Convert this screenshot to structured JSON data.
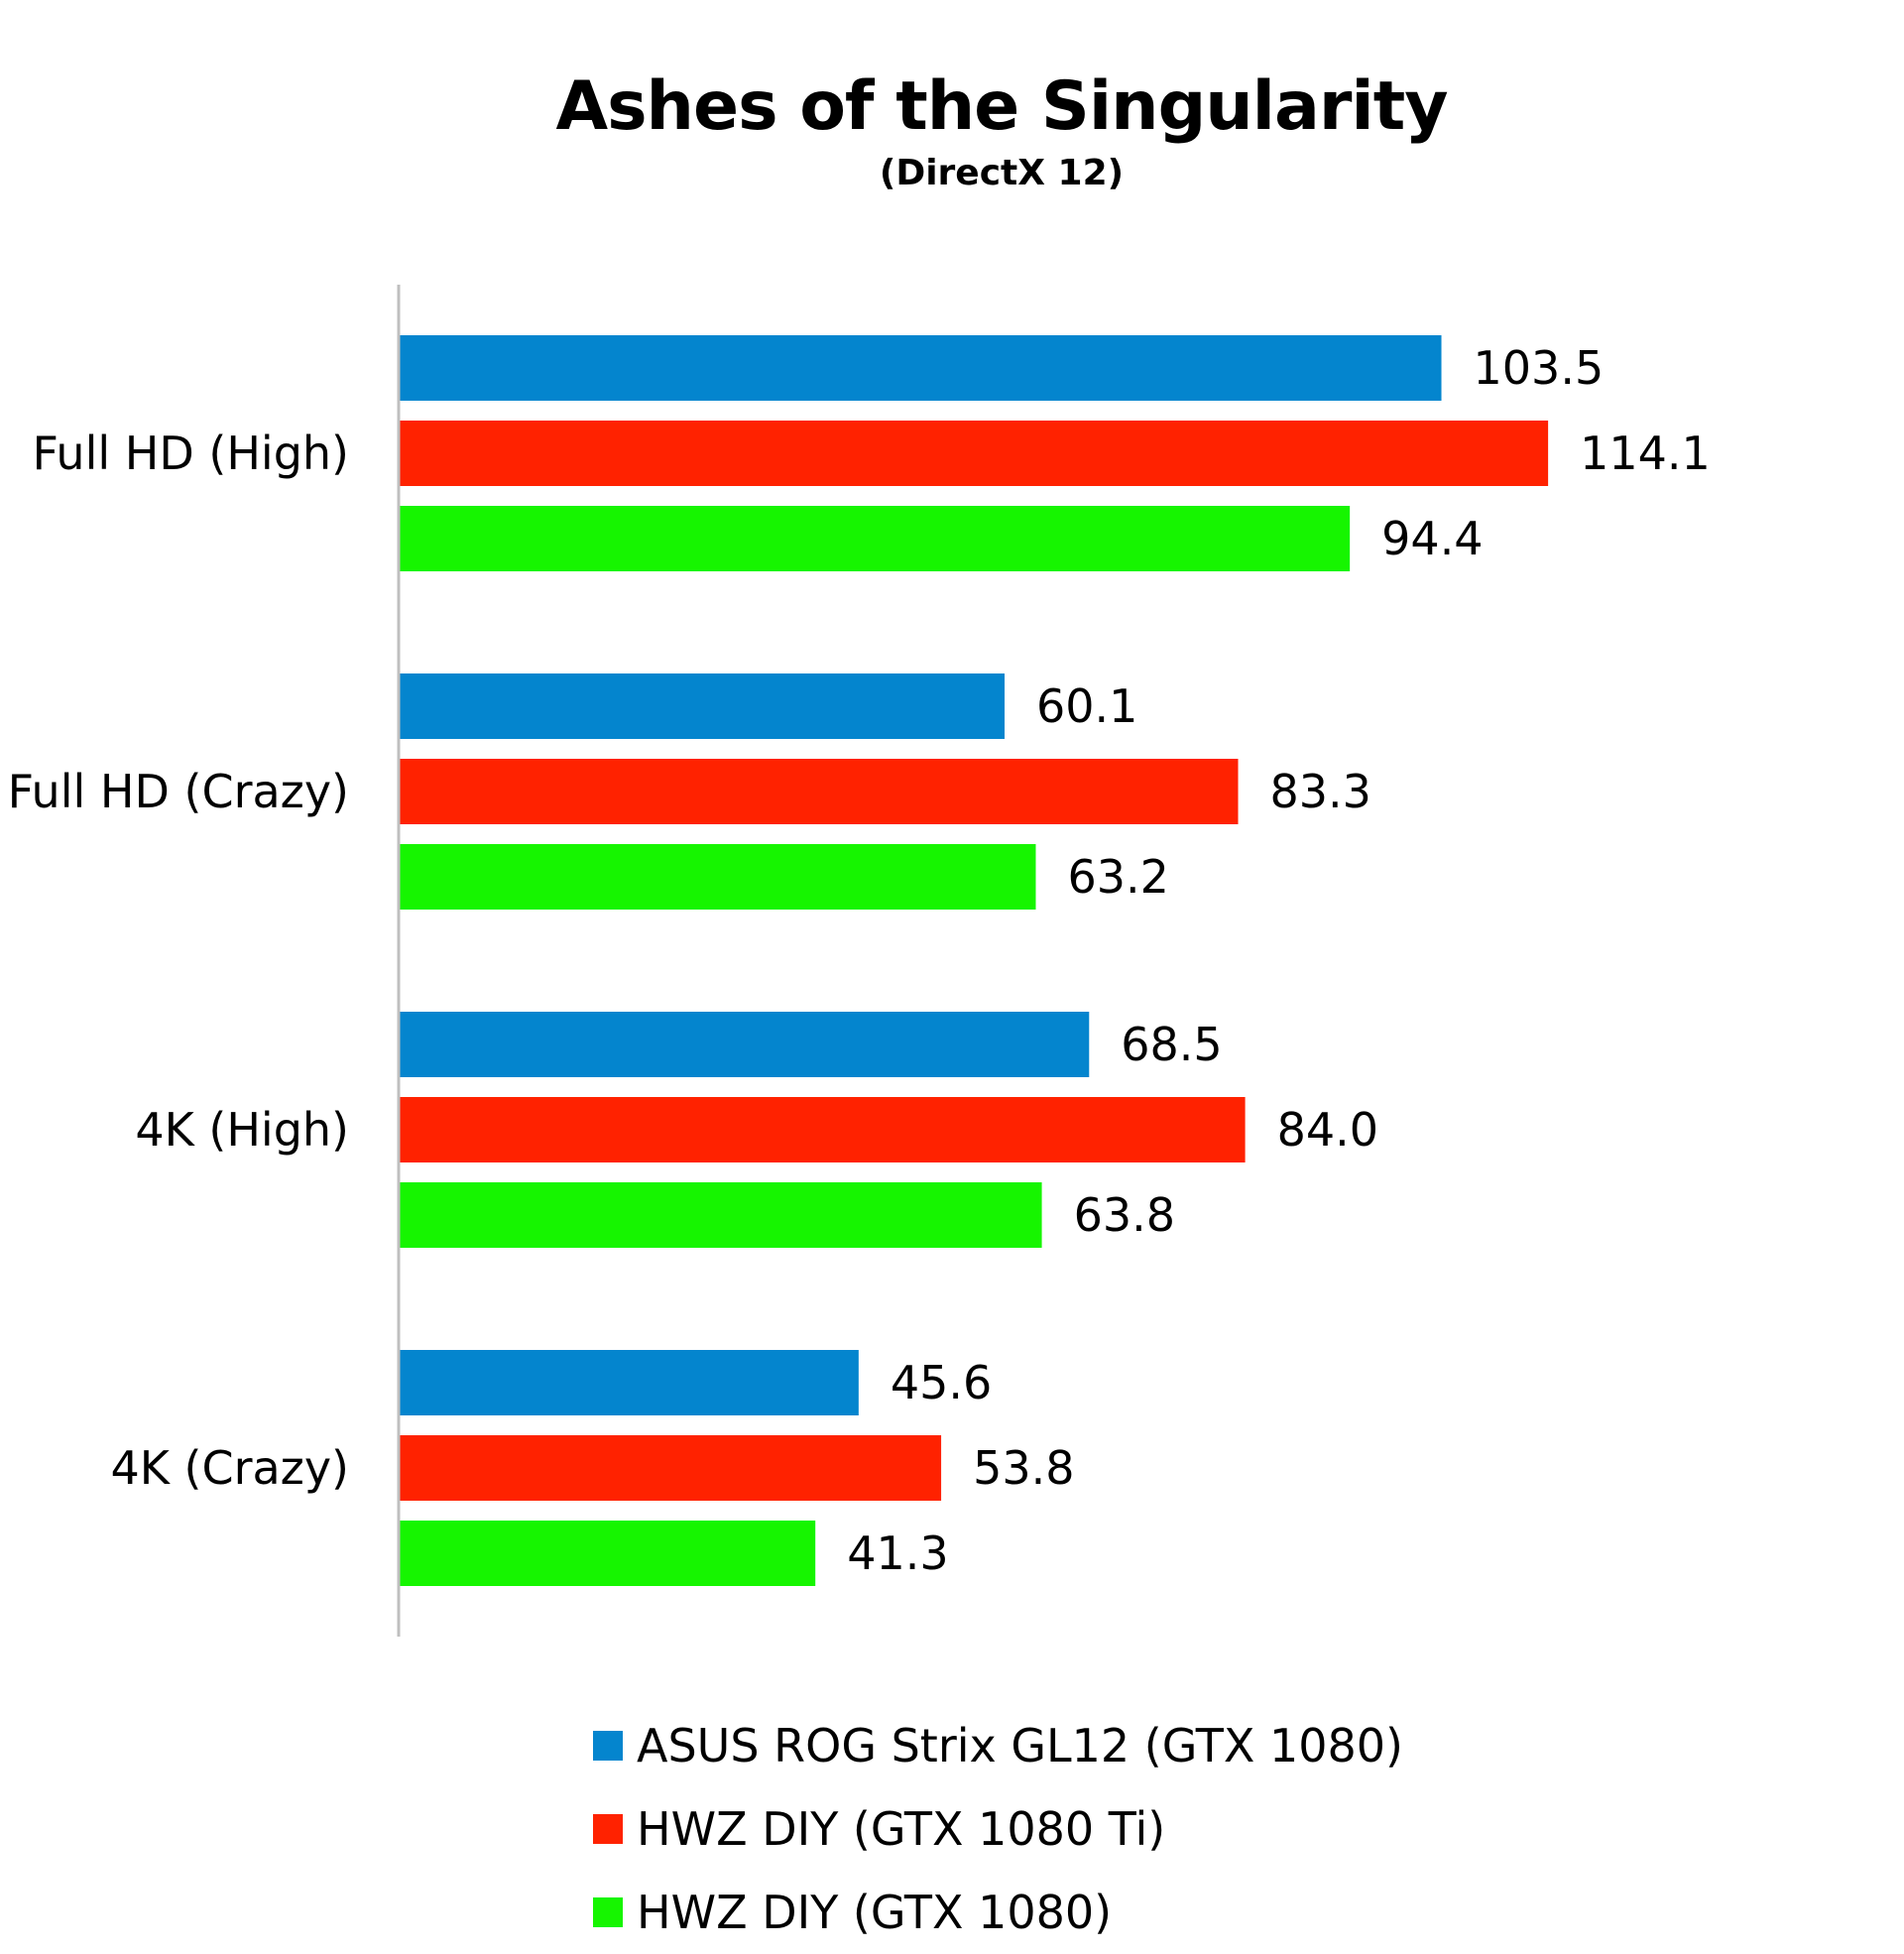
{
  "chart_data": {
    "type": "bar",
    "orientation": "horizontal",
    "title": "Ashes of the Singularity",
    "subtitle": "(DirectX 12)",
    "categories": [
      "Full HD (High)",
      "Full HD (Crazy)",
      "4K (High)",
      "4K (Crazy)"
    ],
    "series": [
      {
        "name": "ASUS ROG Strix GL12 (GTX 1080)",
        "color": "#0485CE",
        "values": [
          103.5,
          60.1,
          68.5,
          45.6
        ]
      },
      {
        "name": "HWZ DIY (GTX 1080 Ti)",
        "color": "#FF2200",
        "values": [
          114.1,
          83.3,
          84.0,
          53.8
        ]
      },
      {
        "name": "HWZ DIY (GTX 1080)",
        "color": "#16F500",
        "values": [
          94.4,
          63.2,
          63.8,
          41.3
        ]
      }
    ],
    "value_labels": [
      [
        "103.5",
        "60.1",
        "68.5",
        "45.6"
      ],
      [
        "114.1",
        "83.3",
        "84.0",
        "53.8"
      ],
      [
        "94.4",
        "63.2",
        "63.8",
        "41.3"
      ]
    ],
    "xlabel": "",
    "ylabel": "",
    "xlim": [
      0,
      120
    ],
    "grid": false,
    "x_axis_visible": false,
    "legend_position": "bottom"
  }
}
